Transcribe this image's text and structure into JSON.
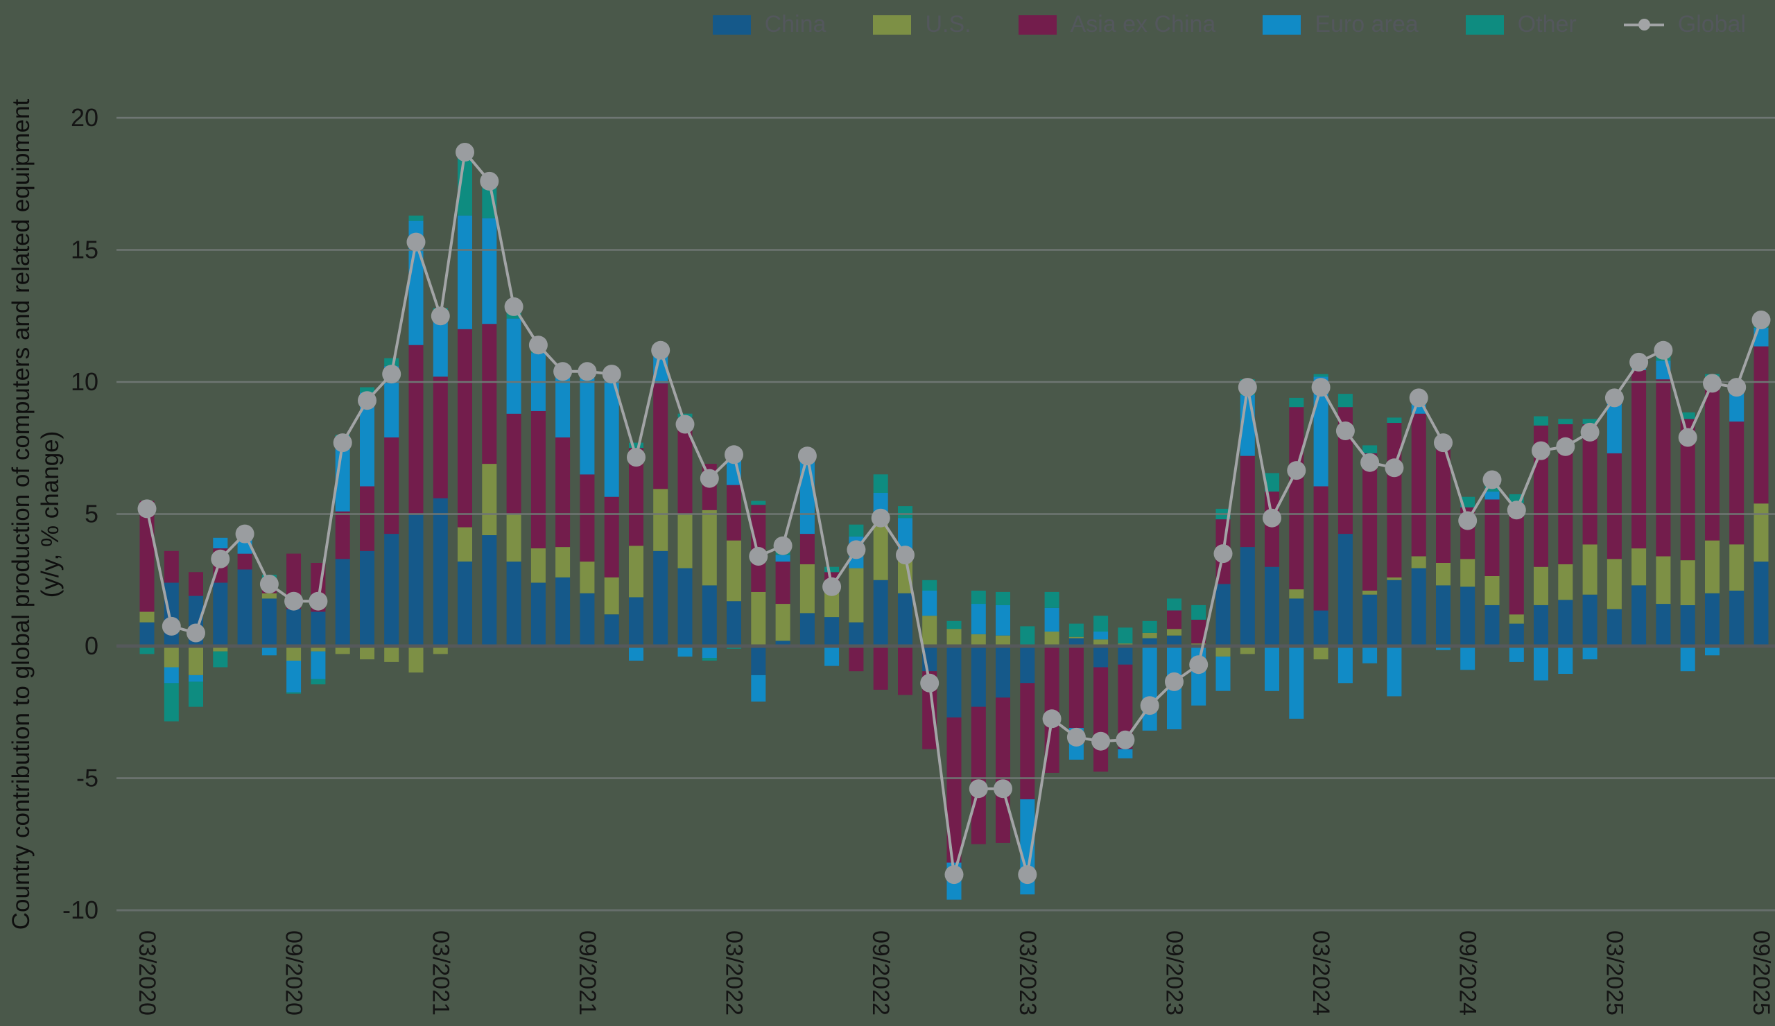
{
  "page": {
    "background": "#4a584a",
    "grid_color": "#6e7673",
    "zero_line_color": "#55595b",
    "bottom_line_color": "#666e6b",
    "tick_text_color": "#141414"
  },
  "y_axis_title_line1": "Country contribution to global production of computers and related equipment",
  "y_axis_title_line2": "(y/y, % change)",
  "legend": [
    {
      "name": "China",
      "color": "#15598a",
      "type": "swatch"
    },
    {
      "name": "U.S.",
      "color": "#7d9045",
      "type": "swatch"
    },
    {
      "name": "Asia ex China",
      "color": "#731d4c",
      "type": "swatch"
    },
    {
      "name": "Euro area",
      "color": "#118bc6",
      "type": "swatch"
    },
    {
      "name": "Other",
      "color": "#0e8c80",
      "type": "swatch"
    },
    {
      "name": "Global",
      "color": "#a2a4a6",
      "type": "line"
    }
  ],
  "chart_data": {
    "type": "bar",
    "subtype": "stacked-bars-with-line",
    "start_month": "03/2020",
    "end_month": "09/2025",
    "x_tick_labels": [
      "03/2020",
      "09/2020",
      "03/2021",
      "09/2021",
      "03/2022",
      "09/2022",
      "03/2023",
      "09/2023",
      "03/2024",
      "09/2024",
      "03/2025",
      "09/2025"
    ],
    "x_tick_every": 6,
    "ylim": [
      -10,
      20
    ],
    "yticks": [
      20,
      15,
      10,
      5,
      0,
      -5,
      -10
    ],
    "grid": "horizontal, drawn above bars",
    "legend_position": "top",
    "series": [
      {
        "name": "China",
        "color": "#15598a",
        "values": [
          0.9,
          2.4,
          1.9,
          2.4,
          2.9,
          1.8,
          1.4,
          1.3,
          3.3,
          3.6,
          4.25,
          5.0,
          5.6,
          3.2,
          4.2,
          3.2,
          2.4,
          2.6,
          2.0,
          1.2,
          1.85,
          3.6,
          2.95,
          2.3,
          1.7,
          -1.1,
          0.2,
          1.25,
          1.1,
          0.9,
          2.5,
          2.0,
          -0.95,
          -2.7,
          -2.3,
          -1.95,
          -1.4,
          0.0,
          0.3,
          -0.8,
          -0.7,
          0.3,
          0.4,
          0.05,
          2.35,
          3.75,
          3.0,
          1.8,
          1.35,
          4.25,
          1.95,
          2.5,
          2.95,
          2.3,
          2.25,
          1.55,
          0.85,
          1.55,
          1.75,
          1.95,
          1.4,
          2.3,
          1.6,
          1.55,
          2.0,
          2.1,
          3.2
        ]
      },
      {
        "name": "U.S.",
        "color": "#7d9045",
        "values": [
          0.4,
          -0.8,
          -1.1,
          -0.2,
          0.0,
          0.2,
          -0.55,
          -0.2,
          -0.3,
          -0.5,
          -0.6,
          -1.0,
          -0.3,
          1.3,
          2.7,
          1.8,
          1.3,
          1.15,
          1.2,
          1.4,
          1.95,
          2.35,
          2.05,
          2.85,
          2.3,
          2.05,
          1.4,
          1.85,
          0.95,
          2.05,
          2.2,
          1.65,
          1.15,
          0.65,
          0.45,
          0.4,
          0.05,
          0.55,
          0.05,
          0.25,
          0.1,
          0.2,
          0.25,
          0.05,
          -0.4,
          -0.3,
          0.0,
          0.35,
          -0.5,
          0.0,
          0.15,
          0.1,
          0.45,
          0.85,
          1.05,
          1.1,
          0.35,
          1.45,
          1.35,
          1.9,
          1.9,
          1.4,
          1.8,
          1.7,
          2.0,
          1.75,
          2.2
        ]
      },
      {
        "name": "Asia ex China",
        "color": "#731d4c",
        "values": [
          4.2,
          1.2,
          0.9,
          1.3,
          0.6,
          0.55,
          2.1,
          1.85,
          1.8,
          2.45,
          3.65,
          6.4,
          4.6,
          7.5,
          5.3,
          3.8,
          5.2,
          4.15,
          3.3,
          3.05,
          3.7,
          4.0,
          3.65,
          1.75,
          2.1,
          3.3,
          1.6,
          1.15,
          0.75,
          -0.95,
          -1.65,
          -1.85,
          -2.95,
          -5.5,
          -5.2,
          -5.5,
          -4.4,
          -4.8,
          -3.1,
          -3.95,
          -3.2,
          0.0,
          0.7,
          0.9,
          2.45,
          3.45,
          2.85,
          6.9,
          4.7,
          4.8,
          5.2,
          5.85,
          5.4,
          4.3,
          1.95,
          2.9,
          4.2,
          5.35,
          5.3,
          4.55,
          4.0,
          6.75,
          6.7,
          5.35,
          6.0,
          4.65,
          5.95
        ]
      },
      {
        "name": "Euro area",
        "color": "#118bc6",
        "values": [
          0.0,
          -0.6,
          -0.25,
          0.4,
          0.8,
          -0.35,
          -1.2,
          -1.05,
          2.85,
          3.55,
          2.7,
          4.7,
          2.4,
          4.3,
          4.0,
          3.6,
          2.2,
          2.3,
          3.65,
          4.45,
          -0.55,
          1.05,
          -0.4,
          -0.45,
          1.25,
          -1.0,
          0.25,
          2.9,
          -0.75,
          1.2,
          1.1,
          1.2,
          0.95,
          -1.4,
          1.15,
          1.15,
          -3.6,
          0.9,
          -1.2,
          0.3,
          -0.35,
          -3.2,
          -3.15,
          -2.25,
          -1.3,
          2.3,
          -1.7,
          -2.75,
          4.15,
          -1.4,
          -0.65,
          -1.9,
          0.35,
          -0.15,
          -0.9,
          0.3,
          -0.6,
          -1.3,
          -1.05,
          -0.5,
          1.9,
          0.05,
          0.7,
          -0.95,
          -0.35,
          1.2,
          0.7
        ]
      },
      {
        "name": "Other",
        "color": "#0e8c80",
        "values": [
          -0.3,
          -1.45,
          -0.95,
          -0.6,
          -0.05,
          0.15,
          -0.05,
          -0.2,
          0.05,
          0.2,
          0.3,
          0.2,
          0.2,
          2.4,
          1.4,
          0.45,
          0.3,
          0.2,
          0.25,
          0.2,
          0.2,
          0.2,
          0.15,
          -0.1,
          -0.1,
          0.15,
          0.35,
          0.05,
          0.2,
          0.45,
          0.7,
          0.45,
          0.4,
          0.3,
          0.5,
          0.5,
          0.7,
          0.6,
          0.5,
          0.6,
          0.6,
          0.45,
          0.45,
          0.55,
          0.4,
          0.6,
          0.7,
          0.35,
          0.1,
          0.5,
          0.3,
          0.2,
          0.25,
          0.4,
          0.4,
          0.45,
          0.35,
          0.35,
          0.2,
          0.2,
          0.2,
          0.25,
          0.4,
          0.25,
          0.3,
          0.1,
          0.3
        ]
      }
    ],
    "line_series": {
      "name": "Global",
      "color": "#a2a4a6",
      "marker_color": "#9a9da0",
      "values": [
        5.2,
        0.75,
        0.5,
        3.3,
        4.25,
        2.35,
        1.7,
        1.7,
        7.7,
        9.3,
        10.3,
        15.3,
        12.5,
        18.7,
        17.6,
        12.85,
        11.4,
        10.4,
        10.4,
        10.3,
        7.15,
        11.2,
        8.4,
        6.35,
        7.25,
        3.4,
        3.8,
        7.2,
        2.25,
        3.65,
        4.85,
        3.45,
        -1.4,
        -8.65,
        -5.4,
        -5.4,
        -8.65,
        -2.75,
        -3.45,
        -3.6,
        -3.55,
        -2.25,
        -1.35,
        -0.7,
        3.5,
        9.8,
        4.85,
        6.65,
        9.8,
        8.15,
        6.95,
        6.75,
        9.4,
        7.7,
        4.75,
        6.3,
        5.15,
        7.4,
        7.55,
        8.1,
        9.4,
        10.75,
        11.2,
        7.9,
        9.95,
        9.8,
        12.35
      ]
    }
  }
}
